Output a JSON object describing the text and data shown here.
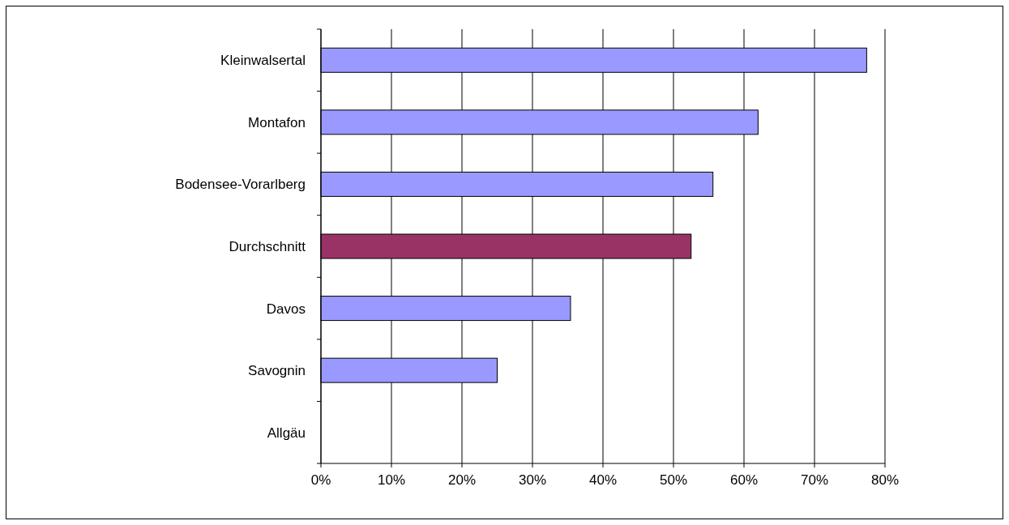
{
  "chart_data": {
    "type": "bar",
    "orientation": "horizontal",
    "categories": [
      "Kleinwalsertal",
      "Montafon",
      "Bodensee-Vorarlberg",
      "Durchschnitt",
      "Davos",
      "Savognin",
      "Allgäu"
    ],
    "values": [
      77.4,
      62,
      55.6,
      52.5,
      35.4,
      25,
      0
    ],
    "colors": [
      "#9999ff",
      "#9999ff",
      "#9999ff",
      "#993366",
      "#9999ff",
      "#9999ff",
      "#9999ff"
    ],
    "xlim": [
      0,
      80
    ],
    "xticks": [
      {
        "value": 0,
        "label": "0%"
      },
      {
        "value": 10,
        "label": "10%"
      },
      {
        "value": 20,
        "label": "20%"
      },
      {
        "value": 30,
        "label": "30%"
      },
      {
        "value": 40,
        "label": "40%"
      },
      {
        "value": 50,
        "label": "50%"
      },
      {
        "value": 60,
        "label": "60%"
      },
      {
        "value": 70,
        "label": "70%"
      },
      {
        "value": 80,
        "label": "80%"
      }
    ],
    "grid": "x"
  }
}
